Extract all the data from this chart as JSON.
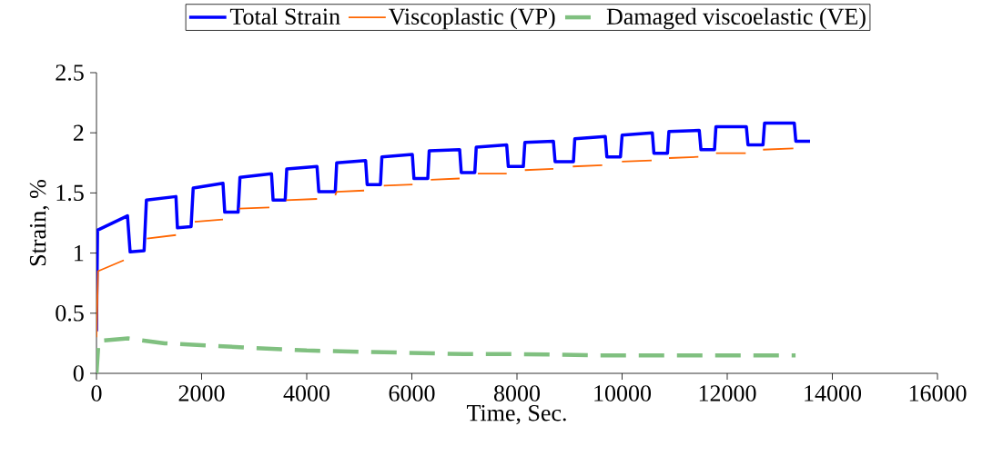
{
  "chart_data": {
    "type": "line",
    "xlabel": "Time, Sec.",
    "ylabel": "Strain, %",
    "xlim": [
      0,
      16000
    ],
    "xticks": [
      0,
      2000,
      4000,
      6000,
      8000,
      10000,
      12000,
      14000,
      16000
    ],
    "ylim": [
      0,
      2.5
    ],
    "yticks": [
      0,
      0.5,
      1,
      1.5,
      2,
      2.5
    ],
    "grid": false,
    "legend": "top",
    "series": [
      {
        "name": "Total Strain",
        "color": "#0000ff",
        "line_style": "solid",
        "x": [
          0,
          20,
          590,
          640,
          906,
          950,
          1512,
          1540,
          1800,
          1840,
          2407,
          2440,
          2695,
          2730,
          3330,
          3360,
          3590,
          3620,
          4196,
          4230,
          4543,
          4570,
          5120,
          5150,
          5403,
          5430,
          6009,
          6040,
          6303,
          6330,
          6909,
          6940,
          7198,
          7225,
          7804,
          7835,
          8121,
          8150,
          8693,
          8725,
          9074,
          9100,
          9680,
          9710,
          9969,
          10000,
          10575,
          10605,
          10863,
          10890,
          11468,
          11500,
          11758,
          11785,
          12364,
          12395,
          12681,
          12710,
          13276,
          13305,
          13576
        ],
        "values": [
          0.35,
          1.19,
          1.31,
          1.01,
          1.02,
          1.44,
          1.47,
          1.21,
          1.22,
          1.54,
          1.58,
          1.34,
          1.34,
          1.63,
          1.66,
          1.44,
          1.44,
          1.7,
          1.72,
          1.51,
          1.51,
          1.75,
          1.77,
          1.57,
          1.57,
          1.8,
          1.82,
          1.62,
          1.62,
          1.85,
          1.86,
          1.67,
          1.67,
          1.88,
          1.9,
          1.72,
          1.72,
          1.92,
          1.93,
          1.76,
          1.76,
          1.95,
          1.97,
          1.8,
          1.8,
          1.98,
          2.0,
          1.83,
          1.83,
          2.01,
          2.02,
          1.86,
          1.86,
          2.05,
          2.05,
          1.9,
          1.9,
          2.08,
          2.08,
          1.93,
          1.93
        ]
      },
      {
        "name": "Viscoplastic (VP)",
        "color": "#ff6600",
        "line_style": "solid",
        "x": [
          0,
          30,
          520,
          700,
          960,
          1512,
          1700,
          1870,
          2407,
          2550,
          2714,
          3290,
          3450,
          3608,
          4196,
          4350,
          4543,
          4570,
          5092,
          5300,
          5466,
          6013,
          6200,
          6360,
          6909,
          7100,
          7255,
          7804,
          8000,
          8150,
          8693,
          8900,
          9062,
          9622,
          9800,
          9997,
          10563,
          10700,
          10892,
          11451,
          11600,
          11787,
          12352,
          12500,
          12681,
          13258
        ],
        "values": [
          0.3,
          0.85,
          0.94,
          null,
          1.12,
          1.15,
          null,
          1.26,
          1.28,
          null,
          1.37,
          1.38,
          null,
          1.44,
          1.45,
          null,
          1.48,
          1.51,
          1.52,
          null,
          1.56,
          1.57,
          null,
          1.61,
          1.62,
          null,
          1.66,
          1.66,
          null,
          1.69,
          1.7,
          null,
          1.72,
          1.73,
          null,
          1.76,
          1.77,
          null,
          1.79,
          1.8,
          null,
          1.83,
          1.83,
          null,
          1.86,
          1.87
        ]
      },
      {
        "name": "Damaged viscoelastic (VE)",
        "color": "#80c080",
        "line_style": "dashed",
        "x": [
          0,
          40,
          600,
          1300,
          2200,
          3000,
          4000,
          5000,
          6000,
          7000,
          8000,
          9500,
          11000,
          13300
        ],
        "values": [
          0,
          0.27,
          0.29,
          0.25,
          0.23,
          0.21,
          0.19,
          0.18,
          0.17,
          0.16,
          0.16,
          0.15,
          0.15,
          0.15
        ]
      }
    ]
  }
}
